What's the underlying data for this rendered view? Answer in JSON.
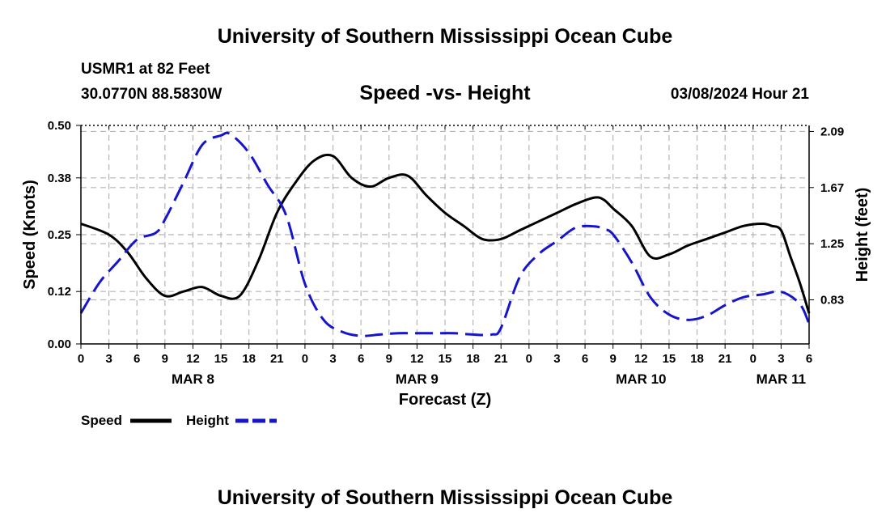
{
  "header": {
    "title": "University of Southern Mississippi Ocean Cube",
    "station": "USMR1 at 82 Feet",
    "coordinates": "30.0770N  88.5830W",
    "subtitle": "Speed -vs- Height",
    "datetime": "03/08/2024 Hour 21"
  },
  "footer": {
    "title": "University of Southern Mississippi Ocean Cube"
  },
  "colors": {
    "speed": "#000000",
    "height": "#1515cc",
    "grid": "#b5b5b5"
  },
  "chart_data": {
    "type": "line",
    "title": "Speed -vs- Height",
    "xlabel": "Forecast (Z)",
    "ylabel": "Speed (Knots)",
    "y2label": "Height (feet)",
    "x_unit": "hours since MAR 8 00Z",
    "xlim": [
      0,
      78
    ],
    "ylim": [
      0,
      0.5
    ],
    "y2lim": [
      0.5,
      2.135
    ],
    "yticks": [
      "0.00",
      "0.12",
      "0.25",
      "0.38",
      "0.50"
    ],
    "y2ticks": [
      "0.83",
      "1.25",
      "1.67",
      "2.09"
    ],
    "xtick_labels": [
      "0",
      "3",
      "6",
      "9",
      "12",
      "15",
      "18",
      "21",
      "0",
      "3",
      "6",
      "9",
      "12",
      "15",
      "18",
      "21",
      "0",
      "3",
      "6",
      "9",
      "12",
      "15",
      "18",
      "21",
      "0",
      "3",
      "6"
    ],
    "date_labels": [
      {
        "label": "MAR 8",
        "hour": 12
      },
      {
        "label": "MAR 9",
        "hour": 36
      },
      {
        "label": "MAR 10",
        "hour": 60
      },
      {
        "label": "MAR 11",
        "hour": 75
      }
    ],
    "grid": true,
    "legend": [
      {
        "name": "Speed",
        "style": "solid"
      },
      {
        "name": "Height",
        "style": "dashed"
      }
    ],
    "legend_position": "bottom-left",
    "series": [
      {
        "name": "Speed",
        "axis": "left",
        "style": "solid",
        "x": [
          0,
          3,
          5,
          7,
          9,
          11,
          13,
          15,
          17,
          19,
          21,
          23,
          25,
          27,
          29,
          31,
          33,
          35,
          37,
          39,
          41,
          43,
          45,
          47,
          49,
          51,
          53,
          55,
          56,
          57,
          59,
          61,
          63,
          65,
          67,
          69,
          71,
          73,
          74,
          75,
          76,
          77,
          78
        ],
        "values": [
          0.275,
          0.25,
          0.21,
          0.15,
          0.11,
          0.12,
          0.13,
          0.11,
          0.11,
          0.19,
          0.3,
          0.37,
          0.42,
          0.43,
          0.38,
          0.36,
          0.38,
          0.385,
          0.34,
          0.3,
          0.27,
          0.24,
          0.24,
          0.26,
          0.28,
          0.3,
          0.32,
          0.335,
          0.33,
          0.31,
          0.27,
          0.2,
          0.205,
          0.225,
          0.24,
          0.255,
          0.27,
          0.275,
          0.27,
          0.26,
          0.2,
          0.14,
          0.07
        ]
      },
      {
        "name": "Height",
        "axis": "right",
        "style": "dashed",
        "x": [
          0,
          2,
          4,
          6,
          8,
          9,
          11,
          13,
          15,
          16,
          18,
          20,
          22,
          24,
          26,
          28,
          30,
          32,
          34,
          36,
          38,
          40,
          42,
          44,
          45,
          47,
          49,
          51,
          53,
          55,
          56,
          57,
          59,
          61,
          63,
          65,
          67,
          69,
          71,
          73,
          75,
          77,
          78
        ],
        "values": [
          0.73,
          0.96,
          1.12,
          1.28,
          1.33,
          1.43,
          1.71,
          1.99,
          2.06,
          2.07,
          1.93,
          1.69,
          1.46,
          0.95,
          0.68,
          0.59,
          0.56,
          0.57,
          0.58,
          0.58,
          0.58,
          0.58,
          0.57,
          0.57,
          0.62,
          1.0,
          1.17,
          1.27,
          1.37,
          1.38,
          1.36,
          1.32,
          1.11,
          0.85,
          0.72,
          0.68,
          0.71,
          0.79,
          0.85,
          0.87,
          0.89,
          0.8,
          0.65
        ]
      }
    ]
  }
}
